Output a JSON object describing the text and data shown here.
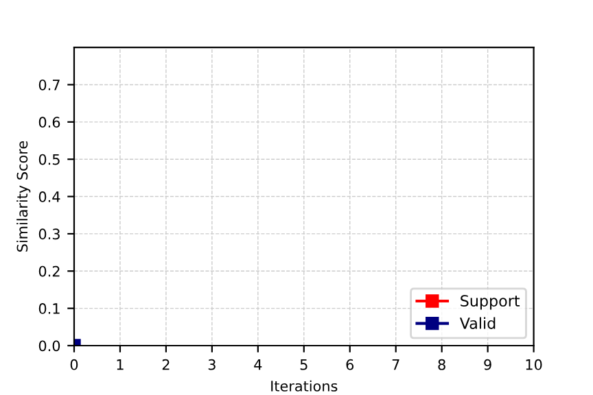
{
  "chart_data": {
    "type": "line",
    "xlabel": "Iterations",
    "ylabel": "Similarity Score",
    "xlim": [
      0,
      10
    ],
    "xticks": [
      0,
      1,
      2,
      3,
      4,
      5,
      6,
      7,
      8,
      9,
      10
    ],
    "ylim": [
      0,
      0.8
    ],
    "yticks": [
      {
        "value": 0,
        "label": "0.0"
      },
      0.1,
      0.2,
      0.3,
      0.4,
      0.5,
      0.6,
      0.7
    ],
    "grid": true,
    "legend": "bottom right",
    "marker": "square",
    "line_style": "solid",
    "series": [
      {
        "name": "Support",
        "color": "#ff0000",
        "values": [
          null
        ]
      },
      {
        "name": "Valid",
        "color": "#000080",
        "x": [
          0
        ],
        "values": [
          0
        ]
      }
    ]
  }
}
